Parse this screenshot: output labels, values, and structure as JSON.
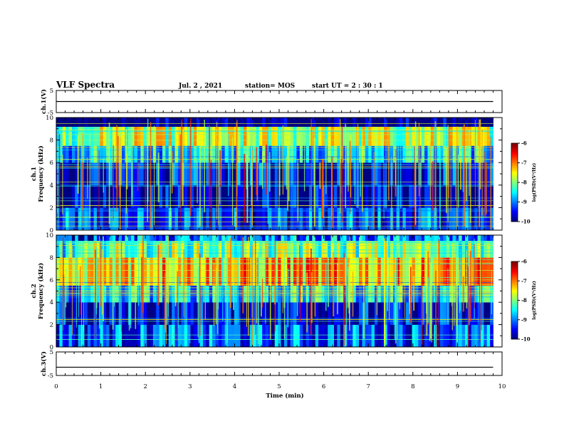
{
  "header": {
    "title": "VLF Spectra",
    "date": "Jul. 2 , 2021",
    "station": "station= MOS",
    "start_ut": "start UT = 2 : 30 : 1"
  },
  "chart_data": [
    {
      "type": "line",
      "name": "ch1-waveform",
      "ylabel": "ch.1(V)",
      "ylim": [
        -5,
        5
      ],
      "yticks": [
        "5",
        "-5"
      ],
      "xlim": [
        0,
        10
      ],
      "x": [
        0,
        9.8
      ],
      "y": [
        0,
        0
      ]
    },
    {
      "type": "heatmap",
      "name": "ch1-spectrogram",
      "ylabel": "ch.1 Frequency (kHz)",
      "ylabel_line1": "ch.1",
      "ylabel_line2": "Frequency (kHz)",
      "ylim": [
        0,
        10
      ],
      "yticks": [
        "0",
        "2",
        "4",
        "6",
        "8",
        "10"
      ],
      "xlim": [
        0,
        10
      ],
      "data_end_min": 9.8,
      "colorbar": {
        "label": "log(PSD)(V²/Hz)",
        "range": [
          -10,
          -6
        ],
        "ticks": [
          "-6",
          "-7",
          "-8",
          "-9",
          "-10"
        ]
      },
      "band_levels": [
        {
          "f_min": 0.0,
          "f_max": 2.0,
          "level": -9.3
        },
        {
          "f_min": 2.0,
          "f_max": 4.0,
          "level": -9.8
        },
        {
          "f_min": 4.0,
          "f_max": 6.0,
          "level": -9.5
        },
        {
          "f_min": 6.0,
          "f_max": 7.5,
          "level": -8.6
        },
        {
          "f_min": 7.5,
          "f_max": 9.2,
          "level": -7.8
        },
        {
          "f_min": 9.2,
          "f_max": 10.0,
          "level": -10.0
        }
      ]
    },
    {
      "type": "heatmap",
      "name": "ch2-spectrogram",
      "ylabel": "ch.2 Frequency (kHz)",
      "ylabel_line1": "ch.2",
      "ylabel_line2": "Frequency (kHz)",
      "ylim": [
        0,
        10
      ],
      "yticks": [
        "0",
        "2",
        "4",
        "6",
        "8",
        "10"
      ],
      "xlim": [
        0,
        10
      ],
      "data_end_min": 9.8,
      "colorbar": {
        "label": "log(PSD)(V²/Hz)",
        "range": [
          -10,
          -6
        ],
        "ticks": [
          "-6",
          "-7",
          "-8",
          "-9",
          "-10"
        ]
      },
      "band_levels": [
        {
          "f_min": 0.0,
          "f_max": 2.0,
          "level": -9.2
        },
        {
          "f_min": 2.0,
          "f_max": 4.0,
          "level": -9.6
        },
        {
          "f_min": 4.0,
          "f_max": 5.5,
          "level": -8.6
        },
        {
          "f_min": 5.5,
          "f_max": 8.0,
          "level": -7.2
        },
        {
          "f_min": 8.0,
          "f_max": 9.5,
          "level": -8.0
        },
        {
          "f_min": 9.5,
          "f_max": 10.0,
          "level": -9.0
        }
      ]
    },
    {
      "type": "line",
      "name": "ch3-waveform",
      "ylabel": "ch.3(V)",
      "ylim": [
        -5,
        5
      ],
      "yticks": [
        "5",
        "-5"
      ],
      "xlim": [
        0,
        10
      ],
      "x": [
        0,
        9.8
      ],
      "y": [
        -1.5,
        -1.5
      ]
    }
  ],
  "xaxis": {
    "label": "Time (min)",
    "ticks": [
      "0",
      "1",
      "2",
      "3",
      "4",
      "5",
      "6",
      "7",
      "8",
      "9",
      "10"
    ]
  }
}
